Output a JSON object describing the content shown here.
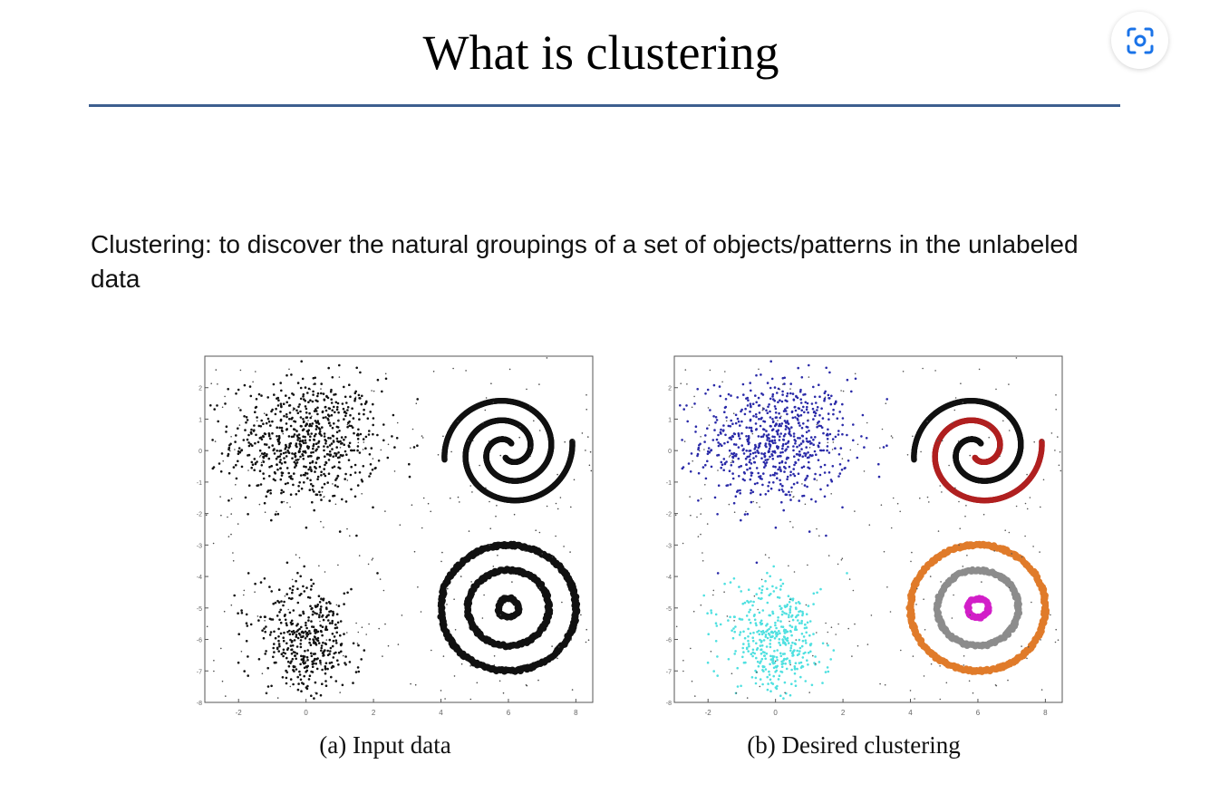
{
  "slide": {
    "title": "What is clustering",
    "body": "Clustering: to discover the natural groupings of a set of objects/patterns in the unlabeled data"
  },
  "lens_button": {
    "icon": "lens-scan-icon"
  },
  "figures": [
    {
      "id": "a",
      "caption": "(a) Input data"
    },
    {
      "id": "b",
      "caption": "(b) Desired clustering"
    }
  ],
  "colors": {
    "title_rule": "#3d5f8f",
    "input_points": "#111111",
    "gaussian_cluster_1": "#2a2aa8",
    "gaussian_cluster_2": "#4fe0e0",
    "spiral_1": "#111111",
    "spiral_2": "#b02020",
    "ring_outer": "#e07b2a",
    "ring_middle": "#8c8c8c",
    "ring_inner": "#d21ec8"
  },
  "chart_data": [
    {
      "type": "scatter",
      "caption": "(a) Input data",
      "xlim": [
        -3,
        8.5
      ],
      "ylim": [
        -8,
        3
      ],
      "xticks": [
        -2,
        0,
        2,
        4,
        6,
        8
      ],
      "yticks": [
        2,
        1,
        0,
        -1,
        -2,
        -3,
        -4,
        -5,
        -6,
        -7,
        -8
      ],
      "grid": false,
      "series": [
        {
          "shape": "gaussian_blob",
          "center": [
            0,
            0.3
          ],
          "spread": [
            1.1,
            1.0
          ],
          "color": "#111111"
        },
        {
          "shape": "gaussian_blob",
          "center": [
            0,
            -6
          ],
          "spread": [
            0.7,
            0.8
          ],
          "color": "#111111"
        },
        {
          "shape": "double_spiral",
          "center": [
            6,
            0
          ],
          "color": "#111111"
        },
        {
          "shape": "concentric_rings",
          "center": [
            6,
            -5
          ],
          "radii": [
            0.3,
            1.2,
            2.0
          ],
          "color": "#111111"
        },
        {
          "shape": "uniform_noise",
          "color": "#444444"
        }
      ]
    },
    {
      "type": "scatter",
      "caption": "(b) Desired clustering",
      "xlim": [
        -3,
        8.5
      ],
      "ylim": [
        -8,
        3
      ],
      "xticks": [
        -2,
        0,
        2,
        4,
        6,
        8
      ],
      "yticks": [
        2,
        1,
        0,
        -1,
        -2,
        -3,
        -4,
        -5,
        -6,
        -7,
        -8
      ],
      "grid": false,
      "series": [
        {
          "shape": "gaussian_blob",
          "center": [
            0,
            0.3
          ],
          "spread": [
            1.1,
            1.0
          ],
          "color": "#2a2aa8"
        },
        {
          "shape": "gaussian_blob",
          "center": [
            0,
            -6
          ],
          "spread": [
            0.7,
            0.8
          ],
          "color": "#4fe0e0"
        },
        {
          "shape": "spiral_arm_1",
          "center": [
            6,
            0
          ],
          "color": "#111111"
        },
        {
          "shape": "spiral_arm_2",
          "center": [
            6,
            0
          ],
          "color": "#b02020"
        },
        {
          "shape": "ring",
          "center": [
            6,
            -5
          ],
          "radius": 2.0,
          "color": "#e07b2a"
        },
        {
          "shape": "ring",
          "center": [
            6,
            -5
          ],
          "radius": 1.2,
          "color": "#8c8c8c"
        },
        {
          "shape": "ring",
          "center": [
            6,
            -5
          ],
          "radius": 0.3,
          "color": "#d21ec8"
        },
        {
          "shape": "uniform_noise",
          "color": "#555555"
        }
      ]
    }
  ]
}
